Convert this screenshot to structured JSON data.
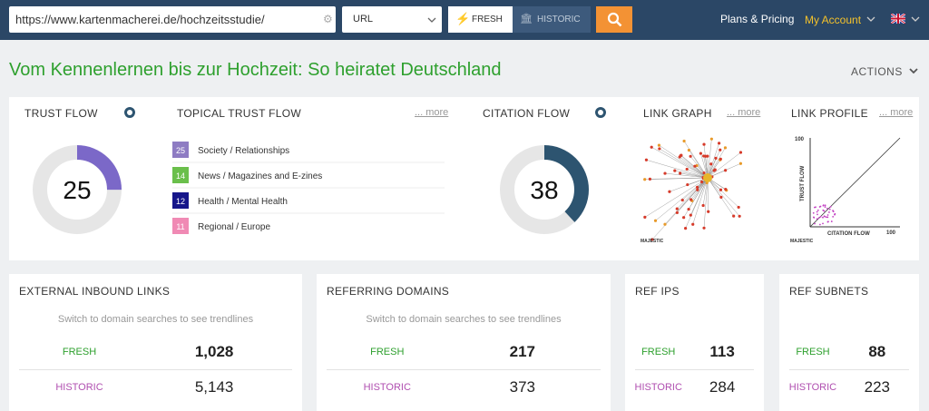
{
  "header": {
    "url": "https://www.kartenmacherei.de/hochzeitsstudie/",
    "mode": "URL",
    "fresh": "FRESH",
    "historic": "HISTORIC",
    "plans": "Plans & Pricing",
    "account": "My Account"
  },
  "title": "Vom Kennenlernen bis zur Hochzeit: So heiratet Deutschland",
  "actions": "ACTIONS",
  "summary": {
    "trust_flow": {
      "label": "TRUST FLOW",
      "value": 25,
      "color": "#7b68c8"
    },
    "topical": {
      "label": "TOPICAL TRUST FLOW",
      "more": "... more",
      "items": [
        {
          "score": 25,
          "topic": "Society / Relationships",
          "color": "#8e7cc3"
        },
        {
          "score": 14,
          "topic": "News / Magazines and E-zines",
          "color": "#6abf4b"
        },
        {
          "score": 12,
          "topic": "Health / Mental Health",
          "color": "#16168a"
        },
        {
          "score": 11,
          "topic": "Regional / Europe",
          "color": "#f08ab4"
        }
      ]
    },
    "citation_flow": {
      "label": "CITATION FLOW",
      "value": 38,
      "color": "#2d5470"
    },
    "link_graph": {
      "label": "LINK GRAPH",
      "more": "... more",
      "brand": "MAJESTIC"
    },
    "link_profile": {
      "label": "LINK PROFILE",
      "more": "... more",
      "y_label": "TRUST FLOW",
      "x_label": "CITATION FLOW",
      "y_max": "100",
      "x_max": "100",
      "brand": "MAJESTIC"
    }
  },
  "stats": [
    {
      "label": "EXTERNAL INBOUND LINKS",
      "note": "Switch to domain searches to see trendlines",
      "fresh_label": "FRESH",
      "fresh": "1,028",
      "historic_label": "HISTORIC",
      "historic": "5,143"
    },
    {
      "label": "REFERRING DOMAINS",
      "note": "Switch to domain searches to see trendlines",
      "fresh_label": "FRESH",
      "fresh": "217",
      "historic_label": "HISTORIC",
      "historic": "373"
    },
    {
      "label": "REF IPS",
      "fresh_label": "FRESH",
      "fresh": "113",
      "historic_label": "HISTORIC",
      "historic": "284"
    },
    {
      "label": "REF SUBNETS",
      "fresh_label": "FRESH",
      "fresh": "88",
      "historic_label": "HISTORIC",
      "historic": "223"
    }
  ]
}
